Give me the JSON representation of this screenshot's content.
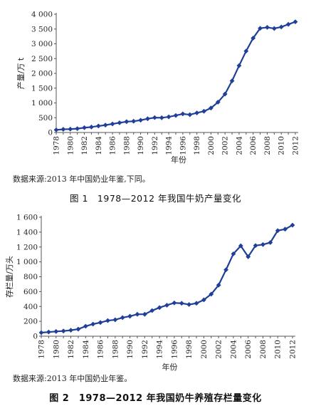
{
  "figures": [
    {
      "source_note": "数据来源:2013 年中国奶业年鉴,下同。",
      "caption": "图 1　1978—2012 年我国牛奶产量变化"
    },
    {
      "source_note": "数据来源:2013 年中国奶业年鉴。",
      "caption": "图 2　1978—2012 年我国奶牛养殖存栏量变化"
    }
  ],
  "chart_data": [
    {
      "type": "line",
      "title": "",
      "xlabel": "年份",
      "ylabel": "产量/万 t",
      "ylim": [
        0,
        4000
      ],
      "yticks": [
        0,
        500,
        1000,
        1500,
        2000,
        2500,
        3000,
        3500,
        4000
      ],
      "ytick_labels": [
        "0",
        "500",
        "1 000",
        "1 500",
        "2 000",
        "2 500",
        "3 000",
        "3 500",
        "4 000"
      ],
      "xtick_labels": [
        "1978",
        "1980",
        "1982",
        "1984",
        "1986",
        "1988",
        "1990",
        "1992",
        "1994",
        "1996",
        "1998",
        "2000",
        "2002",
        "2004",
        "2006",
        "2008",
        "2010",
        "2012"
      ],
      "grid": false,
      "series_color": "#1f3f99",
      "x": [
        1978,
        1979,
        1980,
        1981,
        1982,
        1983,
        1984,
        1985,
        1986,
        1987,
        1988,
        1989,
        1990,
        1991,
        1992,
        1993,
        1994,
        1995,
        1996,
        1997,
        1998,
        1999,
        2000,
        2001,
        2002,
        2003,
        2004,
        2005,
        2006,
        2007,
        2008,
        2009,
        2010,
        2011,
        2012
      ],
      "values": [
        88,
        107,
        114,
        129,
        162,
        185,
        219,
        250,
        290,
        328,
        366,
        381,
        416,
        465,
        503,
        499,
        529,
        576,
        629,
        601,
        663,
        718,
        827,
        1026,
        1300,
        1746,
        2261,
        2753,
        3193,
        3525,
        3556,
        3518,
        3570,
        3658,
        3744
      ]
    },
    {
      "type": "line",
      "title": "",
      "xlabel": "年份",
      "ylabel": "存栏量/万头",
      "ylim": [
        0,
        1600
      ],
      "yticks": [
        0,
        200,
        400,
        600,
        800,
        1000,
        1200,
        1400,
        1600
      ],
      "ytick_labels": [
        "0",
        "200",
        "400",
        "600",
        "800",
        "1 000",
        "1 200",
        "1 400",
        "1 600"
      ],
      "xtick_labels": [
        "1978",
        "1980",
        "1982",
        "1984",
        "1986",
        "1988",
        "1990",
        "1992",
        "1994",
        "1996",
        "1998",
        "2000",
        "2002",
        "2004",
        "2006",
        "2008",
        "2010",
        "2012"
      ],
      "grid": false,
      "series_color": "#1f3f99",
      "x": [
        1978,
        1979,
        1980,
        1981,
        1982,
        1983,
        1984,
        1985,
        1986,
        1987,
        1988,
        1989,
        1990,
        1991,
        1992,
        1993,
        1994,
        1995,
        1996,
        1997,
        1998,
        1999,
        2000,
        2001,
        2002,
        2003,
        2004,
        2005,
        2006,
        2007,
        2008,
        2009,
        2010,
        2011,
        2012
      ],
      "values": [
        48,
        56,
        64,
        70,
        80,
        95,
        134,
        163,
        184,
        210,
        221,
        250,
        269,
        295,
        295,
        345,
        385,
        417,
        448,
        443,
        426,
        443,
        489,
        566,
        687,
        893,
        1108,
        1216,
        1069,
        1219,
        1233,
        1260,
        1420,
        1440,
        1494
      ]
    }
  ]
}
